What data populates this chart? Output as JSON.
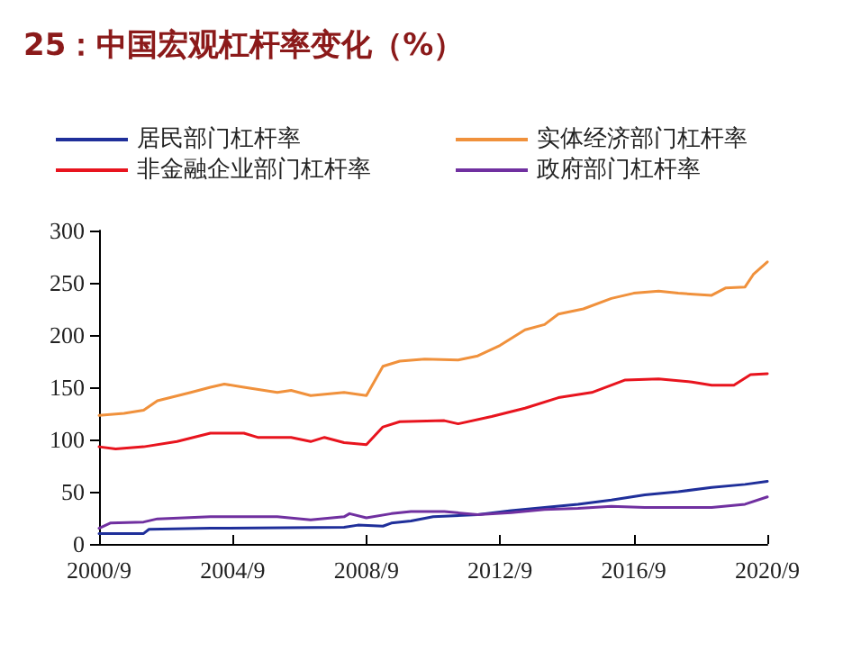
{
  "chart_data": {
    "type": "line",
    "title": "25：中国宏观杠杆率变化（%）",
    "legend": "top",
    "grid": false,
    "marker": "none",
    "line_style": "solid",
    "xlim": [
      "2000-09",
      "2020-09"
    ],
    "xticks": [
      {
        "value": "2000-09",
        "label": "2000/9"
      },
      {
        "value": "2004-09",
        "label": "2004/9"
      },
      {
        "value": "2008-09",
        "label": "2008/9"
      },
      {
        "value": "2012-09",
        "label": "2012/9"
      },
      {
        "value": "2016-09",
        "label": "2016/9"
      },
      {
        "value": "2020-09",
        "label": "2020/9"
      }
    ],
    "ylim": [
      0,
      300
    ],
    "yticks": [
      0,
      50,
      100,
      150,
      200,
      250,
      300
    ],
    "series": [
      {
        "name": "居民部门杠杆率",
        "color": "#1f2f9a",
        "x": [
          "2000-09",
          "2002-01",
          "2002-03",
          "2004-01",
          "2008-01",
          "2008-06",
          "2009-03",
          "2009-06",
          "2010-01",
          "2010-09",
          "2012-01",
          "2013-01",
          "2014-01",
          "2015-01",
          "2016-01",
          "2017-01",
          "2018-01",
          "2019-01",
          "2020-01",
          "2020-09"
        ],
        "values": [
          10,
          10,
          14,
          15,
          16,
          18,
          17,
          20,
          22,
          26,
          28,
          32,
          35,
          38,
          42,
          47,
          50,
          54,
          57,
          60
        ]
      },
      {
        "name": "实体经济部门杠杆率",
        "color": "#f0913c",
        "x": [
          "2000-09",
          "2001-06",
          "2002-01",
          "2002-06",
          "2003-06",
          "2004-01",
          "2004-06",
          "2005-01",
          "2006-01",
          "2006-06",
          "2007-01",
          "2008-01",
          "2008-09",
          "2009-03",
          "2009-09",
          "2010-06",
          "2011-06",
          "2012-01",
          "2012-09",
          "2013-06",
          "2014-01",
          "2014-06",
          "2015-03",
          "2016-01",
          "2016-09",
          "2017-06",
          "2018-01",
          "2019-01",
          "2019-06",
          "2020-01",
          "2020-04",
          "2020-09"
        ],
        "values": [
          123,
          125,
          128,
          137,
          145,
          150,
          153,
          150,
          145,
          147,
          142,
          145,
          142,
          170,
          175,
          177,
          176,
          180,
          190,
          205,
          210,
          220,
          225,
          235,
          240,
          242,
          240,
          238,
          245,
          246,
          258,
          270
        ]
      },
      {
        "name": "非金融企业部门杠杆率",
        "color": "#e8141e",
        "x": [
          "2000-09",
          "2001-03",
          "2002-01",
          "2003-01",
          "2004-01",
          "2005-01",
          "2005-06",
          "2006-06",
          "2007-01",
          "2007-06",
          "2008-01",
          "2008-09",
          "2009-03",
          "2009-09",
          "2011-01",
          "2011-06",
          "2012-06",
          "2013-06",
          "2014-06",
          "2015-06",
          "2016-06",
          "2017-06",
          "2018-06",
          "2019-01",
          "2019-09",
          "2020-03",
          "2020-09"
        ],
        "values": [
          93,
          91,
          93,
          98,
          106,
          106,
          102,
          102,
          98,
          102,
          97,
          95,
          112,
          117,
          118,
          115,
          122,
          130,
          140,
          145,
          157,
          158,
          155,
          152,
          152,
          162,
          163
        ]
      },
      {
        "name": "政府部门杠杆率",
        "color": "#7030a0",
        "x": [
          "2000-09",
          "2001-01",
          "2002-01",
          "2002-06",
          "2004-01",
          "2006-01",
          "2007-01",
          "2008-01",
          "2008-03",
          "2008-09",
          "2009-06",
          "2010-01",
          "2011-01",
          "2012-01",
          "2013-01",
          "2014-01",
          "2015-01",
          "2016-01",
          "2017-01",
          "2019-01",
          "2020-01",
          "2020-09"
        ],
        "values": [
          15,
          20,
          21,
          24,
          26,
          26,
          23,
          26,
          29,
          25,
          29,
          31,
          31,
          28,
          30,
          33,
          34,
          36,
          35,
          35,
          38,
          45
        ]
      }
    ]
  }
}
